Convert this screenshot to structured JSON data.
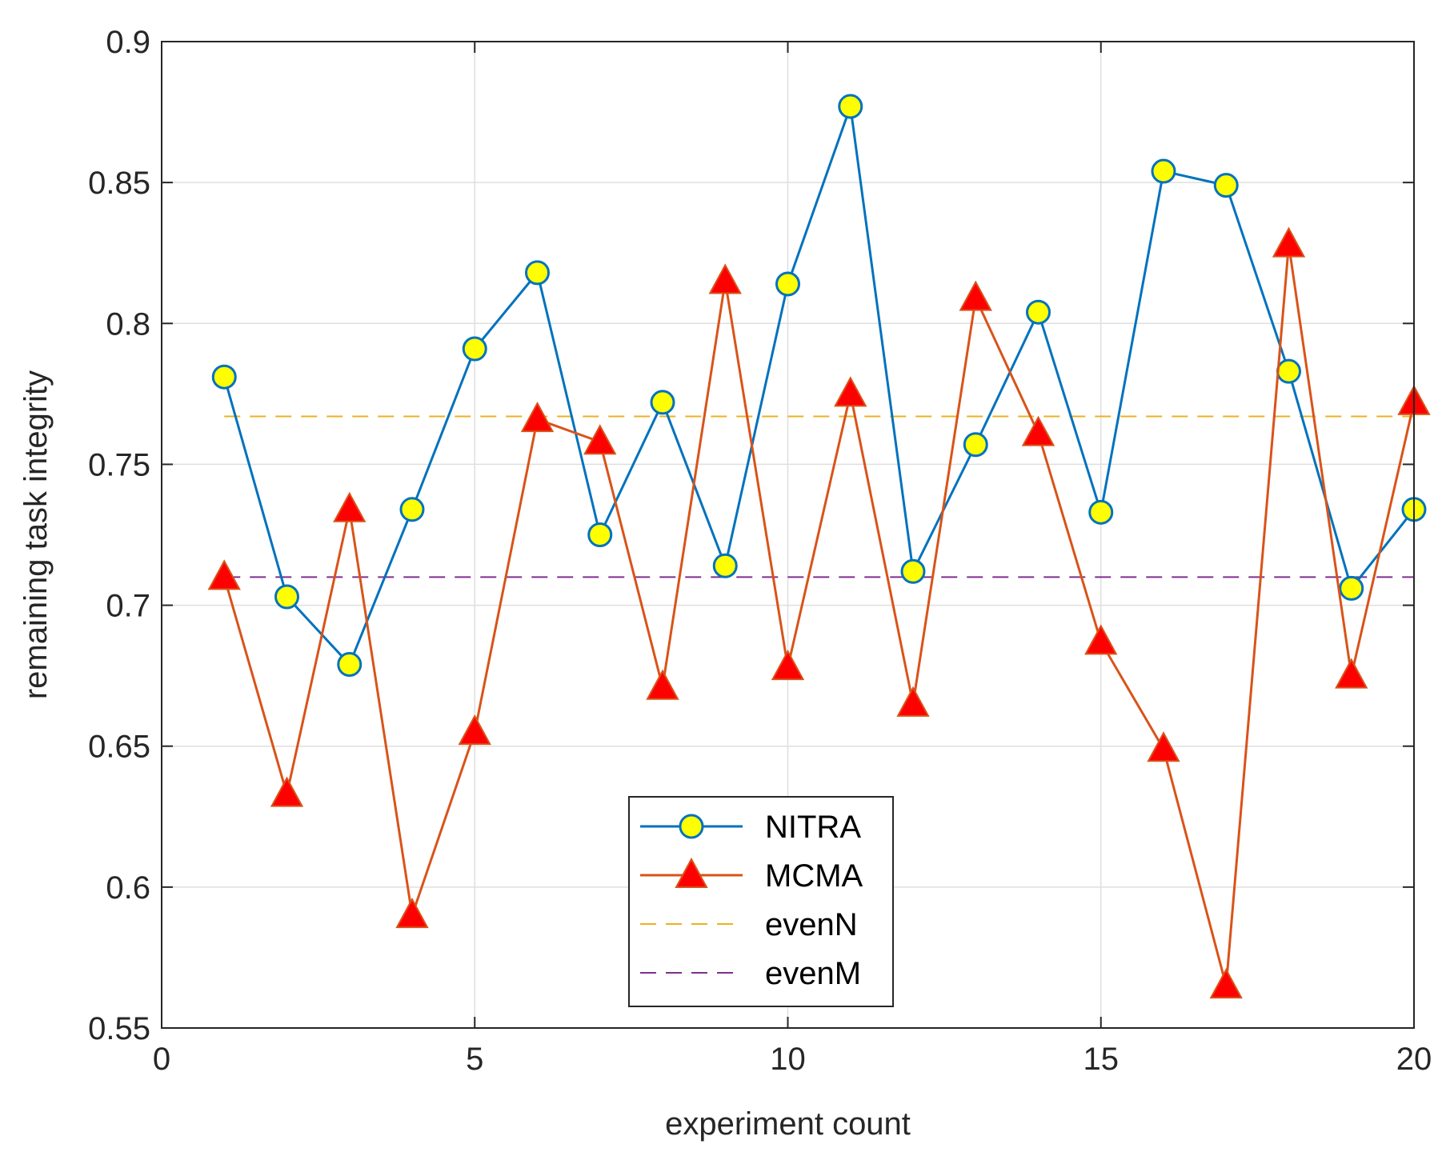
{
  "chart_data": {
    "type": "line",
    "title": "",
    "xlabel": "experiment count",
    "ylabel": "remaining task integrity",
    "xlim": [
      0,
      20
    ],
    "ylim": [
      0.55,
      0.9
    ],
    "xticks": [
      0,
      5,
      10,
      15,
      20
    ],
    "yticks": [
      0.55,
      0.6,
      0.65,
      0.7,
      0.75,
      0.8,
      0.85,
      0.9
    ],
    "xtick_labels": [
      "0",
      "5",
      "10",
      "15",
      "20"
    ],
    "ytick_labels": [
      "0.55",
      "0.6",
      "0.65",
      "0.7",
      "0.75",
      "0.8",
      "0.85",
      "0.9"
    ],
    "grid": true,
    "legend_position": "bottom-center",
    "x": [
      1,
      2,
      3,
      4,
      5,
      6,
      7,
      8,
      9,
      10,
      11,
      12,
      13,
      14,
      15,
      16,
      17,
      18,
      19,
      20
    ],
    "series": [
      {
        "name": "NITRA",
        "color": "#0072BD",
        "marker": "circle",
        "marker_fill": "#FFFF00",
        "values": [
          0.781,
          0.703,
          0.679,
          0.734,
          0.791,
          0.818,
          0.725,
          0.772,
          0.714,
          0.814,
          0.877,
          0.712,
          0.757,
          0.804,
          0.733,
          0.854,
          0.849,
          0.783,
          0.706,
          0.734
        ]
      },
      {
        "name": "MCMA",
        "color": "#D95319",
        "marker": "triangle",
        "marker_fill": "#FF0000",
        "values": [
          0.71,
          0.633,
          0.734,
          0.59,
          0.655,
          0.766,
          0.758,
          0.671,
          0.815,
          0.678,
          0.775,
          0.665,
          0.809,
          0.761,
          0.687,
          0.649,
          0.565,
          0.828,
          0.675,
          0.772
        ]
      },
      {
        "name": "evenN",
        "color": "#EDB120",
        "style": "dashed",
        "constant": 0.767
      },
      {
        "name": "evenM",
        "color": "#7E2F8E",
        "style": "dashed",
        "constant": 0.71
      }
    ]
  }
}
